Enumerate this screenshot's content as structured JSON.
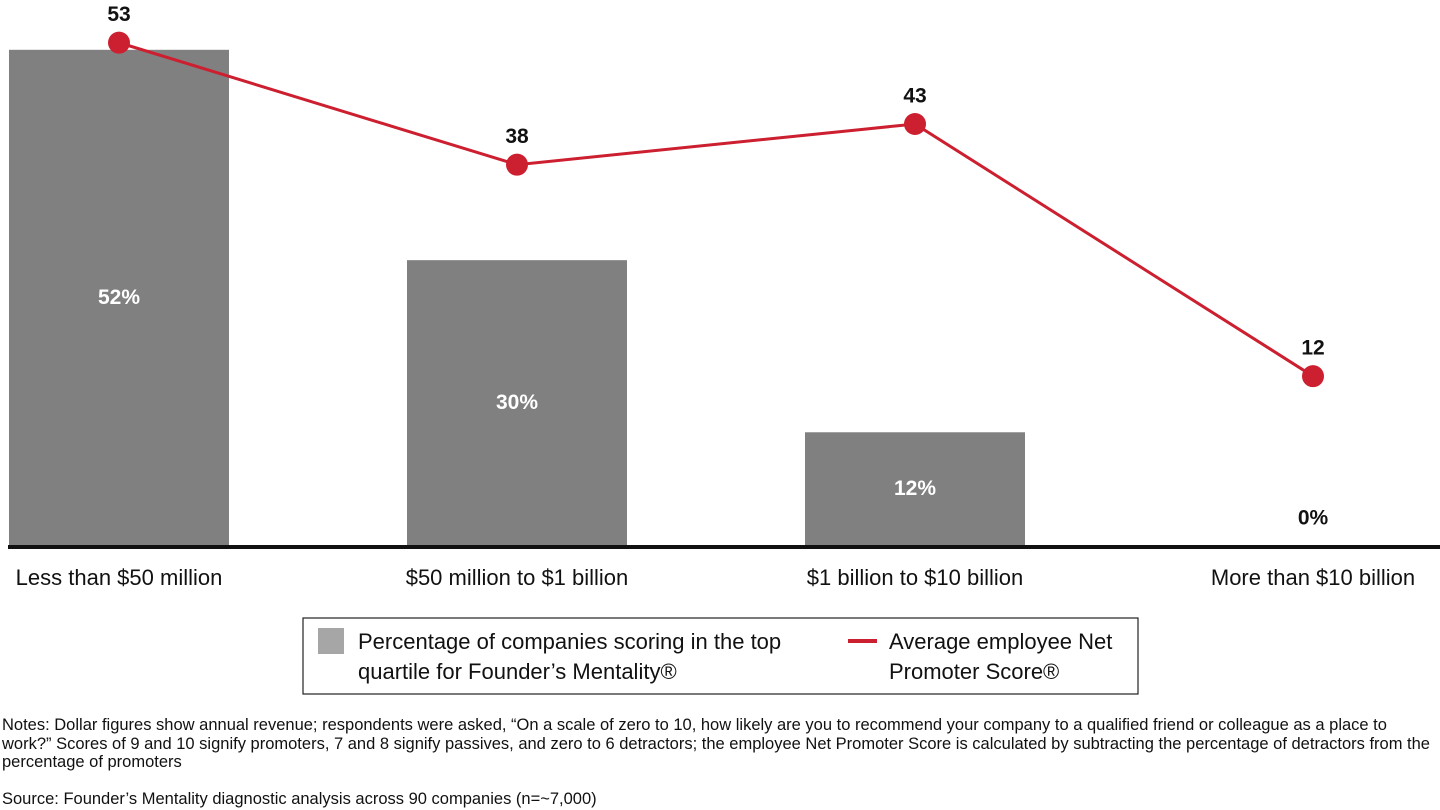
{
  "chart_data": {
    "type": "combo",
    "categories": [
      "Less than $50 million",
      "$50 million to $1 billion",
      "$1 billion to $10 billion",
      "More than $10 billion"
    ],
    "series": [
      {
        "name": "Percentage of companies scoring in the top quartile for Founder’s Mentality®",
        "type": "bar",
        "color": "#808080",
        "legend_color": "#a6a6a6",
        "values": [
          52,
          30,
          12,
          0
        ],
        "value_labels": [
          "52%",
          "30%",
          "12%",
          "0%"
        ]
      },
      {
        "name": "Average employee Net Promoter Score®",
        "type": "line",
        "axis": "y2",
        "color": "#cc1f2f",
        "values": [
          53,
          38,
          43,
          12
        ]
      }
    ],
    "ylim": [
      0,
      57
    ],
    "y2lim": [
      -9,
      58
    ],
    "notes": "Notes: Dollar figures show annual revenue; respondents were asked, “On a scale of zero to 10, how likely are you to recommend your company to a qualified friend or colleague as a place to work?” Scores of 9 and 10 signify promoters, 7 and 8 signify passives, and zero to 6 detractors; the employee Net Promoter Score is calculated by subtracting the percentage of detractors from the percentage of promoters",
    "source": "Source: Founder’s Mentality diagnostic analysis across 90 companies (n=~7,000)"
  }
}
